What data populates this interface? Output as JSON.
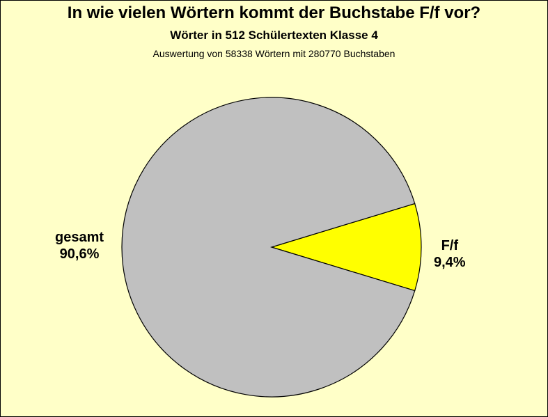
{
  "chart_data": {
    "type": "pie",
    "title": "In wie vielen Wörtern kommt der Buchstabe F/f vor?",
    "subtitle": "Wörter in 512 Schülertexten Klasse 4",
    "note": "Auswertung von 58338 Wörtern mit 280770 Buchstaben",
    "slices": [
      {
        "label": "F/f",
        "value": 9.4,
        "value_label": "9,4%",
        "color": "#ffff00"
      },
      {
        "label": "gesamt",
        "value": 90.6,
        "value_label": "90,6%",
        "color": "#c0c0c0"
      }
    ]
  },
  "colors": {
    "background": "#ffffc8",
    "outline": "#000000"
  }
}
